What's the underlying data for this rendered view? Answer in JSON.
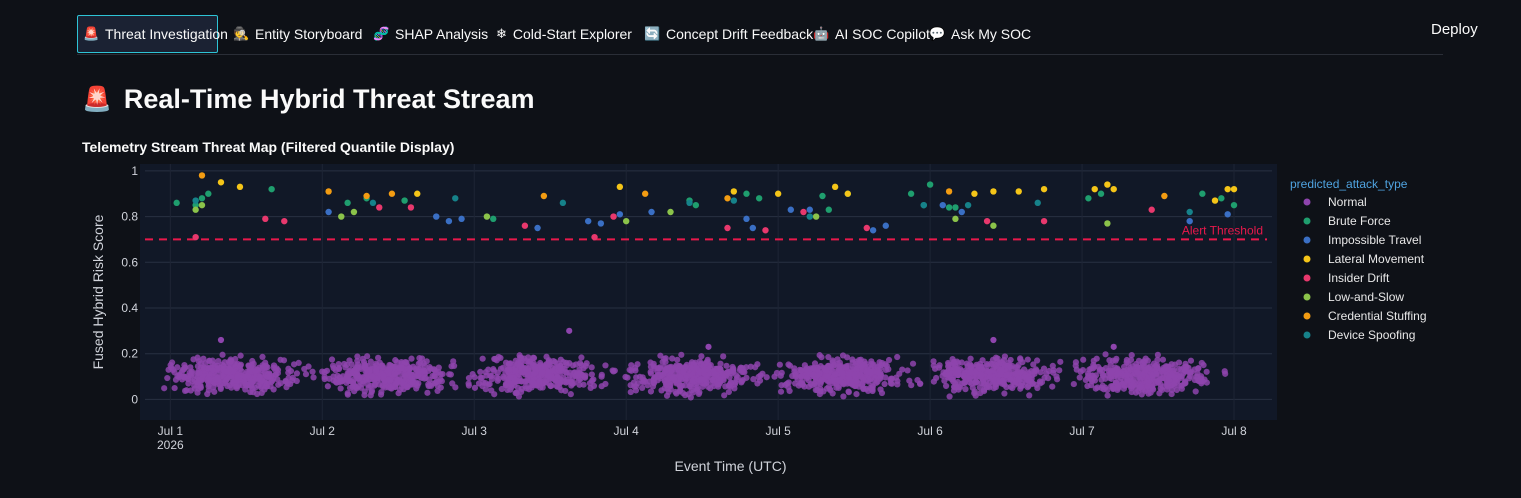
{
  "nav": {
    "tabs": [
      {
        "label": "Threat Investigation",
        "icon": "siren-icon",
        "glyph": "🚨",
        "active": true
      },
      {
        "label": "Entity Storyboard",
        "icon": "detective-icon",
        "glyph": "🕵",
        "active": false
      },
      {
        "label": "SHAP Analysis",
        "icon": "dna-icon",
        "glyph": "🧬",
        "active": false
      },
      {
        "label": "Cold-Start Explorer",
        "icon": "snowflake-icon",
        "glyph": "❄",
        "active": false
      },
      {
        "label": "Concept Drift Feedback",
        "icon": "refresh-icon",
        "glyph": "🔄",
        "active": false
      },
      {
        "label": "AI SOC Copilot",
        "icon": "robot-icon",
        "glyph": "🤖",
        "active": false
      },
      {
        "label": "Ask My SOC",
        "icon": "speech-bubble-icon",
        "glyph": "💬",
        "active": false
      }
    ],
    "deploy_label": "Deploy"
  },
  "page": {
    "title": "Real-Time Hybrid Threat Stream",
    "title_icon": "siren-icon",
    "subtitle": "Telemetry Stream Threat Map (Filtered Quantile Display)"
  },
  "chart_data": {
    "type": "scatter",
    "xlabel": "Event Time (UTC)",
    "ylabel": "Fused Hybrid Risk Score",
    "x_ticks": [
      "Jul 1\n2026",
      "Jul 2",
      "Jul 3",
      "Jul 4",
      "Jul 5",
      "Jul 6",
      "Jul 7",
      "Jul 8"
    ],
    "xlim": [
      "2026-06-30T20:00",
      "2026-07-08T06:00"
    ],
    "ylim": [
      -0.09,
      1.03
    ],
    "y_ticks": [
      0,
      0.2,
      0.4,
      0.6,
      0.8,
      1
    ],
    "grid": true,
    "legend_title": "predicted_attack_type",
    "legend_position": "right",
    "threshold": {
      "value": 0.7,
      "label": "Alert Threshold",
      "color": "#e8194b",
      "style": "dashed"
    },
    "normal_cloud": {
      "series": "Normal",
      "y_range": [
        0.0,
        0.2
      ],
      "density": "high",
      "daily_peaks_hour": 10,
      "outliers": [
        {
          "x": "2026-07-01T08:00",
          "y": 0.26
        },
        {
          "x": "2026-07-03T15:00",
          "y": 0.3
        },
        {
          "x": "2026-07-04T13:00",
          "y": 0.23
        },
        {
          "x": "2026-07-06T10:00",
          "y": 0.26
        },
        {
          "x": "2026-07-07T05:00",
          "y": 0.23
        }
      ]
    },
    "series": [
      {
        "name": "Normal",
        "color": "#8e44ad"
      },
      {
        "name": "Brute Force",
        "color": "#1f9e6e",
        "points": [
          {
            "x": "2026-07-01T01:00",
            "y": 0.86
          },
          {
            "x": "2026-07-01T04:00",
            "y": 0.85
          },
          {
            "x": "2026-07-01T05:00",
            "y": 0.88
          },
          {
            "x": "2026-07-01T06:00",
            "y": 0.9
          },
          {
            "x": "2026-07-01T16:00",
            "y": 0.92
          },
          {
            "x": "2026-07-02T04:00",
            "y": 0.86
          },
          {
            "x": "2026-07-02T07:00",
            "y": 0.88
          },
          {
            "x": "2026-07-02T13:00",
            "y": 0.87
          },
          {
            "x": "2026-07-03T03:00",
            "y": 0.79
          },
          {
            "x": "2026-07-04T10:00",
            "y": 0.87
          },
          {
            "x": "2026-07-04T11:00",
            "y": 0.85
          },
          {
            "x": "2026-07-04T19:00",
            "y": 0.9
          },
          {
            "x": "2026-07-04T21:00",
            "y": 0.88
          },
          {
            "x": "2026-07-05T07:00",
            "y": 0.89
          },
          {
            "x": "2026-07-05T08:00",
            "y": 0.83
          },
          {
            "x": "2026-07-05T11:00",
            "y": 0.9
          },
          {
            "x": "2026-07-05T21:00",
            "y": 0.9
          },
          {
            "x": "2026-07-05T23:00",
            "y": 0.85
          },
          {
            "x": "2026-07-06T00:00",
            "y": 0.94
          },
          {
            "x": "2026-07-06T03:00",
            "y": 0.84
          },
          {
            "x": "2026-07-06T04:00",
            "y": 0.84
          },
          {
            "x": "2026-07-07T01:00",
            "y": 0.88
          },
          {
            "x": "2026-07-07T03:00",
            "y": 0.9
          },
          {
            "x": "2026-07-07T19:00",
            "y": 0.9
          },
          {
            "x": "2026-07-07T22:00",
            "y": 0.88
          },
          {
            "x": "2026-07-08T00:00",
            "y": 0.85
          }
        ]
      },
      {
        "name": "Impossible Travel",
        "color": "#3a6fc4",
        "points": [
          {
            "x": "2026-07-02T01:00",
            "y": 0.82
          },
          {
            "x": "2026-07-02T18:00",
            "y": 0.8
          },
          {
            "x": "2026-07-02T20:00",
            "y": 0.78
          },
          {
            "x": "2026-07-02T22:00",
            "y": 0.79
          },
          {
            "x": "2026-07-03T10:00",
            "y": 0.75
          },
          {
            "x": "2026-07-03T18:00",
            "y": 0.78
          },
          {
            "x": "2026-07-03T20:00",
            "y": 0.77
          },
          {
            "x": "2026-07-03T23:00",
            "y": 0.81
          },
          {
            "x": "2026-07-04T04:00",
            "y": 0.82
          },
          {
            "x": "2026-07-04T19:00",
            "y": 0.79
          },
          {
            "x": "2026-07-04T20:00",
            "y": 0.75
          },
          {
            "x": "2026-07-05T02:00",
            "y": 0.83
          },
          {
            "x": "2026-07-05T05:00",
            "y": 0.83
          },
          {
            "x": "2026-07-05T15:00",
            "y": 0.74
          },
          {
            "x": "2026-07-05T17:00",
            "y": 0.76
          },
          {
            "x": "2026-07-06T02:00",
            "y": 0.85
          },
          {
            "x": "2026-07-06T05:00",
            "y": 0.82
          },
          {
            "x": "2026-07-07T17:00",
            "y": 0.78
          },
          {
            "x": "2026-07-07T23:00",
            "y": 0.81
          }
        ]
      },
      {
        "name": "Lateral Movement",
        "color": "#f5c518",
        "points": [
          {
            "x": "2026-07-01T08:00",
            "y": 0.95
          },
          {
            "x": "2026-07-01T11:00",
            "y": 0.93
          },
          {
            "x": "2026-07-02T15:00",
            "y": 0.9
          },
          {
            "x": "2026-07-03T23:00",
            "y": 0.93
          },
          {
            "x": "2026-07-04T17:00",
            "y": 0.91
          },
          {
            "x": "2026-07-05T00:00",
            "y": 0.9
          },
          {
            "x": "2026-07-05T09:00",
            "y": 0.93
          },
          {
            "x": "2026-07-05T11:00",
            "y": 0.9
          },
          {
            "x": "2026-07-06T07:00",
            "y": 0.9
          },
          {
            "x": "2026-07-06T10:00",
            "y": 0.91
          },
          {
            "x": "2026-07-06T14:00",
            "y": 0.91
          },
          {
            "x": "2026-07-06T18:00",
            "y": 0.92
          },
          {
            "x": "2026-07-07T02:00",
            "y": 0.92
          },
          {
            "x": "2026-07-07T04:00",
            "y": 0.94
          },
          {
            "x": "2026-07-07T05:00",
            "y": 0.92
          },
          {
            "x": "2026-07-07T21:00",
            "y": 0.87
          },
          {
            "x": "2026-07-07T23:00",
            "y": 0.92
          },
          {
            "x": "2026-07-08T00:00",
            "y": 0.92
          }
        ]
      },
      {
        "name": "Insider Drift",
        "color": "#e8386d",
        "points": [
          {
            "x": "2026-07-01T04:00",
            "y": 0.71
          },
          {
            "x": "2026-07-01T15:00",
            "y": 0.79
          },
          {
            "x": "2026-07-01T18:00",
            "y": 0.78
          },
          {
            "x": "2026-07-02T09:00",
            "y": 0.84
          },
          {
            "x": "2026-07-02T14:00",
            "y": 0.84
          },
          {
            "x": "2026-07-03T08:00",
            "y": 0.76
          },
          {
            "x": "2026-07-03T19:00",
            "y": 0.71
          },
          {
            "x": "2026-07-03T22:00",
            "y": 0.8
          },
          {
            "x": "2026-07-04T16:00",
            "y": 0.75
          },
          {
            "x": "2026-07-04T22:00",
            "y": 0.74
          },
          {
            "x": "2026-07-05T04:00",
            "y": 0.82
          },
          {
            "x": "2026-07-05T14:00",
            "y": 0.75
          },
          {
            "x": "2026-07-06T09:00",
            "y": 0.78
          },
          {
            "x": "2026-07-06T18:00",
            "y": 0.78
          },
          {
            "x": "2026-07-07T11:00",
            "y": 0.83
          }
        ]
      },
      {
        "name": "Low-and-Slow",
        "color": "#8bc34a",
        "points": [
          {
            "x": "2026-07-01T04:00",
            "y": 0.83
          },
          {
            "x": "2026-07-01T05:00",
            "y": 0.85
          },
          {
            "x": "2026-07-02T03:00",
            "y": 0.8
          },
          {
            "x": "2026-07-02T05:00",
            "y": 0.82
          },
          {
            "x": "2026-07-03T02:00",
            "y": 0.8
          },
          {
            "x": "2026-07-04T00:00",
            "y": 0.78
          },
          {
            "x": "2026-07-04T07:00",
            "y": 0.82
          },
          {
            "x": "2026-07-05T06:00",
            "y": 0.8
          },
          {
            "x": "2026-07-06T04:00",
            "y": 0.79
          },
          {
            "x": "2026-07-06T10:00",
            "y": 0.76
          },
          {
            "x": "2026-07-07T04:00",
            "y": 0.77
          }
        ]
      },
      {
        "name": "Credential Stuffing",
        "color": "#f39c12",
        "points": [
          {
            "x": "2026-07-01T05:00",
            "y": 0.98
          },
          {
            "x": "2026-07-02T01:00",
            "y": 0.91
          },
          {
            "x": "2026-07-02T07:00",
            "y": 0.89
          },
          {
            "x": "2026-07-02T11:00",
            "y": 0.9
          },
          {
            "x": "2026-07-03T11:00",
            "y": 0.89
          },
          {
            "x": "2026-07-04T03:00",
            "y": 0.9
          },
          {
            "x": "2026-07-04T16:00",
            "y": 0.88
          },
          {
            "x": "2026-07-06T03:00",
            "y": 0.91
          },
          {
            "x": "2026-07-07T13:00",
            "y": 0.89
          }
        ]
      },
      {
        "name": "Device Spoofing",
        "color": "#16828a",
        "points": [
          {
            "x": "2026-07-01T04:00",
            "y": 0.87
          },
          {
            "x": "2026-07-02T08:00",
            "y": 0.86
          },
          {
            "x": "2026-07-02T21:00",
            "y": 0.88
          },
          {
            "x": "2026-07-03T14:00",
            "y": 0.86
          },
          {
            "x": "2026-07-04T10:00",
            "y": 0.86
          },
          {
            "x": "2026-07-04T17:00",
            "y": 0.87
          },
          {
            "x": "2026-07-05T05:00",
            "y": 0.8
          },
          {
            "x": "2026-07-05T23:00",
            "y": 0.85
          },
          {
            "x": "2026-07-06T06:00",
            "y": 0.85
          },
          {
            "x": "2026-07-06T17:00",
            "y": 0.86
          },
          {
            "x": "2026-07-07T17:00",
            "y": 0.82
          }
        ]
      }
    ]
  }
}
